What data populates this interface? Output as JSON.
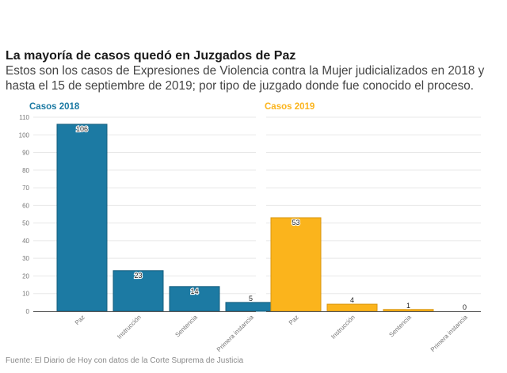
{
  "header": {
    "title": "La mayoría de casos quedó en Juzgados de Paz",
    "subtitle": "Estos son los casos de Expresiones de Violencia contra la Mujer judicializados en 2018 y hasta el 15 de septiembre de 2019; por tipo de juzgado donde fue conocido el proceso."
  },
  "footer": {
    "source": "Fuente: El Diario de Hoy con datos de la Corte Suprema de Justicia"
  },
  "chart_data": [
    {
      "type": "bar",
      "title": "Casos 2018",
      "color": "#1c7aa3",
      "edge_color": "#155d7c",
      "categories": [
        "Paz",
        "Instrucción",
        "Sentencia",
        "Primera instancia"
      ],
      "values": [
        106,
        23,
        14,
        5
      ],
      "ylim": [
        0,
        110
      ],
      "yticks": [
        0,
        10,
        20,
        30,
        40,
        50,
        60,
        70,
        80,
        90,
        100,
        110
      ],
      "grid": true
    },
    {
      "type": "bar",
      "title": "Casos 2019",
      "color": "#fbb41c",
      "edge_color": "#d89610",
      "categories": [
        "Paz",
        "Instrucción",
        "Sentencia",
        "Primera instancia"
      ],
      "values": [
        53,
        4,
        1,
        0
      ],
      "ylim": [
        0,
        110
      ],
      "grid": true
    }
  ]
}
